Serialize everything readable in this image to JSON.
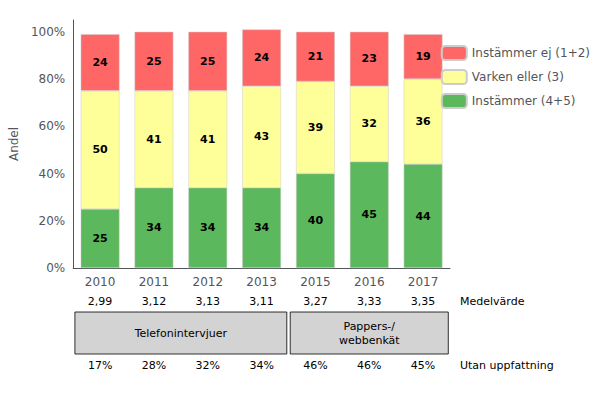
{
  "chart_data": {
    "type": "bar",
    "stacked": true,
    "data_labels": true,
    "grid": false,
    "legend": "right",
    "y_label": "Andel",
    "categories": [
      "2010",
      "2011",
      "2012",
      "2013",
      "2015",
      "2016",
      "2017"
    ],
    "series": [
      {
        "name": "Instämmer (4+5)",
        "color": "#5CB85C",
        "values": [
          25,
          34,
          34,
          34,
          40,
          45,
          44
        ]
      },
      {
        "name": "Varken eller (3)",
        "color": "#FFFF99",
        "values": [
          50,
          41,
          41,
          43,
          39,
          32,
          36
        ]
      },
      {
        "name": "Instämmer ej (1+2)",
        "color": "#FF6666",
        "values": [
          24,
          25,
          25,
          24,
          21,
          23,
          19
        ]
      }
    ],
    "ylim": [
      0,
      105
    ],
    "yticks": [
      {
        "value": 0,
        "label": "0%"
      },
      {
        "value": 20,
        "label": "20%"
      },
      {
        "value": 40,
        "label": "40%"
      },
      {
        "value": 60,
        "label": "60%"
      },
      {
        "value": 80,
        "label": "80%"
      },
      {
        "value": 100,
        "label": "100%"
      }
    ],
    "rows": [
      {
        "label": "Medelvärde",
        "values": [
          "2,99",
          "3,12",
          "3,13",
          "3,11",
          "3,27",
          "3,33",
          "3,35"
        ]
      },
      {
        "label": "Utan uppfattning",
        "values": [
          "17%",
          "28%",
          "32%",
          "34%",
          "46%",
          "46%",
          "45%"
        ]
      }
    ],
    "groups": [
      {
        "label": "Telefonintervjuer",
        "categories": [
          "2010",
          "2011",
          "2012",
          "2013"
        ]
      },
      {
        "label": "Pappers-/\nwebbenkät",
        "categories": [
          "2015",
          "2016",
          "2017"
        ]
      }
    ]
  }
}
